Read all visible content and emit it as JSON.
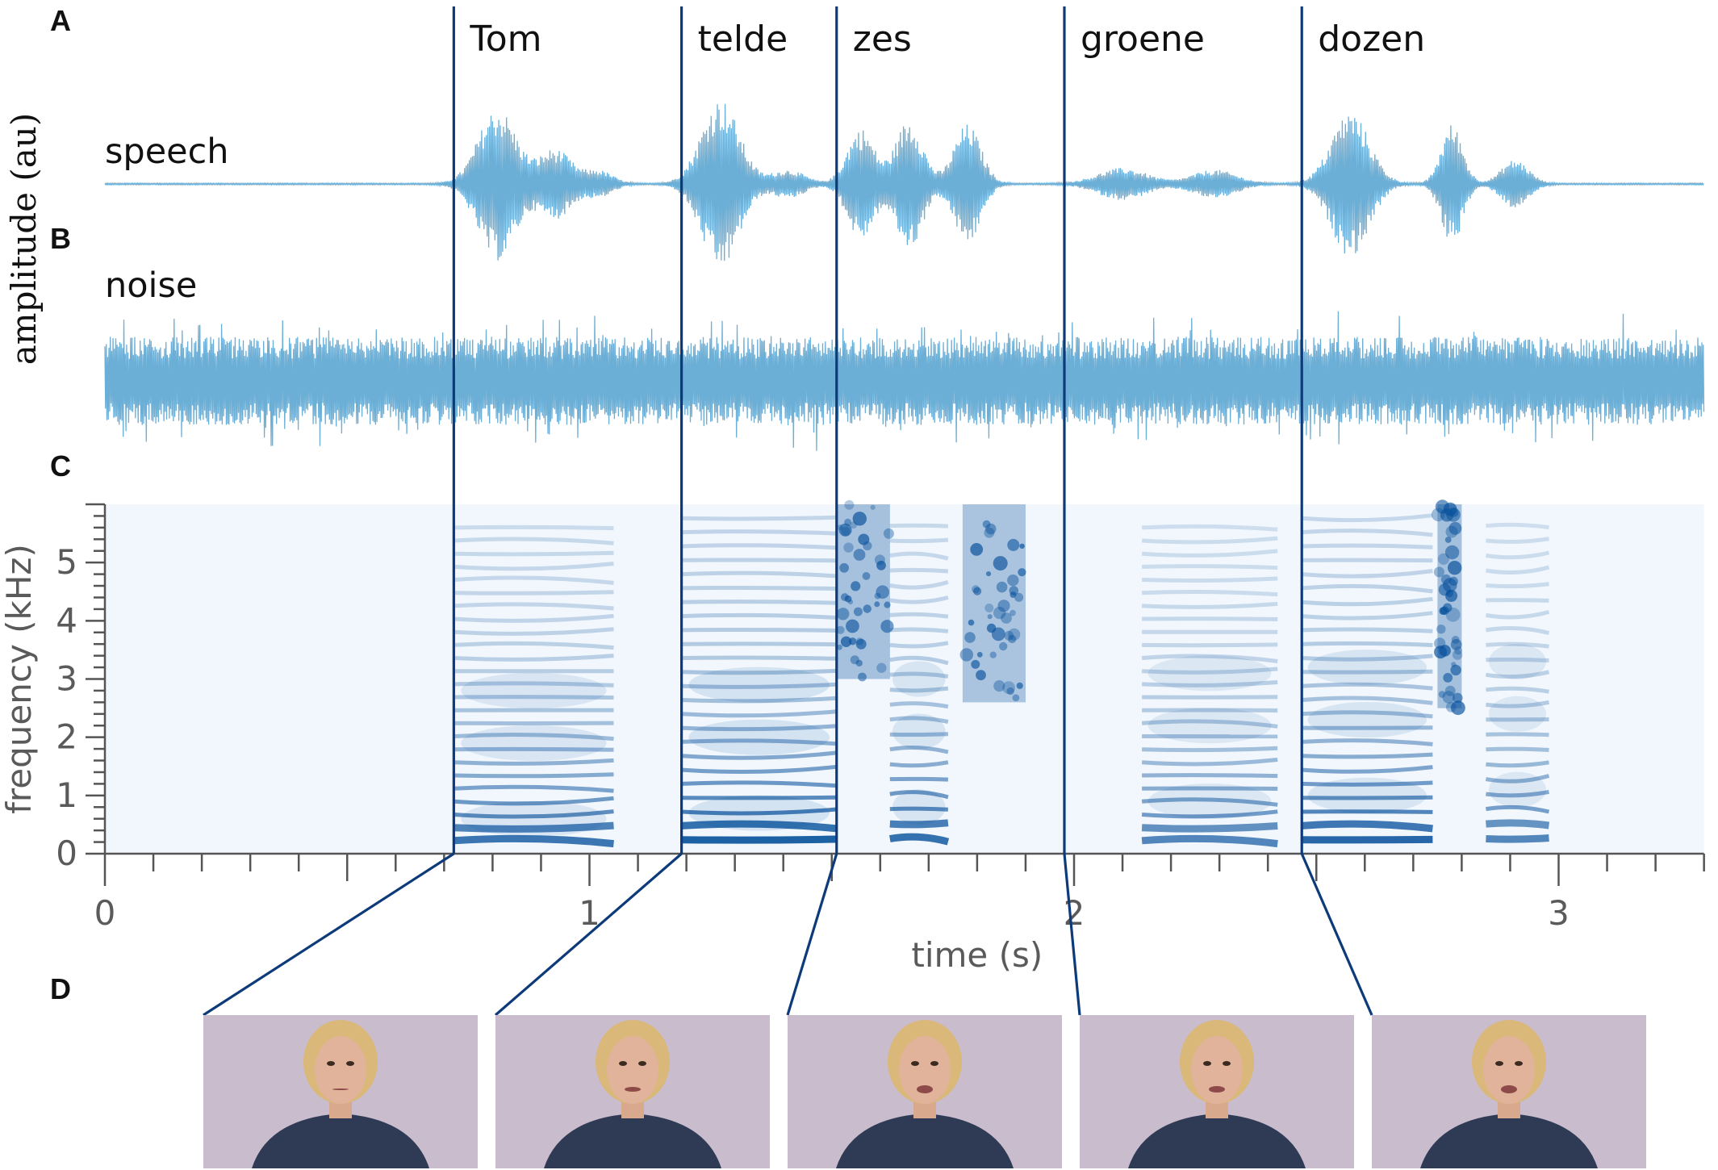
{
  "panels": {
    "a": "A",
    "b": "B",
    "c": "C",
    "d": "D"
  },
  "trace_labels": {
    "speech": "speech",
    "noise": "noise",
    "amplitude": "amplitude (au)"
  },
  "colors": {
    "waveform": "#6baed6",
    "boundary": "#0d3b7a",
    "spectrogram_bg": "#f1f7fd",
    "spectrogram_dark": "#08519c",
    "axis": "#555555",
    "photo_bg": "#c9bccd"
  },
  "chart_data": [
    {
      "type": "line",
      "panel": "A",
      "name": "speech",
      "words": [
        {
          "label": "Tom",
          "onset_s": 0.72
        },
        {
          "label": "telde",
          "onset_s": 1.19
        },
        {
          "label": "zes",
          "onset_s": 1.51
        },
        {
          "label": "groene",
          "onset_s": 1.98
        },
        {
          "label": "dozen",
          "onset_s": 2.47
        }
      ],
      "syllable_envelopes": [
        {
          "t": 0.81,
          "w": 0.07,
          "a": 0.9
        },
        {
          "t": 0.93,
          "w": 0.06,
          "a": 0.4
        },
        {
          "t": 1.02,
          "w": 0.05,
          "a": 0.15
        },
        {
          "t": 1.27,
          "w": 0.07,
          "a": 1.0
        },
        {
          "t": 1.41,
          "w": 0.06,
          "a": 0.16
        },
        {
          "t": 1.56,
          "w": 0.05,
          "a": 0.65
        },
        {
          "t": 1.66,
          "w": 0.05,
          "a": 0.76
        },
        {
          "t": 1.78,
          "w": 0.05,
          "a": 0.7
        },
        {
          "t": 2.1,
          "w": 0.09,
          "a": 0.18
        },
        {
          "t": 2.29,
          "w": 0.08,
          "a": 0.16
        },
        {
          "t": 2.57,
          "w": 0.07,
          "a": 0.85
        },
        {
          "t": 2.78,
          "w": 0.04,
          "a": 0.7
        },
        {
          "t": 2.91,
          "w": 0.05,
          "a": 0.28
        }
      ],
      "xlim": [
        0,
        3.3
      ]
    },
    {
      "type": "line",
      "panel": "B",
      "name": "noise",
      "xlim": [
        0,
        3.3
      ]
    },
    {
      "type": "heatmap",
      "panel": "C",
      "xlabel": "time (s)",
      "ylabel": "frequency (kHz)",
      "xlim": [
        0,
        3.3
      ],
      "ylim": [
        0,
        6
      ],
      "x_ticks": [
        0,
        1,
        2,
        3
      ],
      "y_ticks": [
        0,
        1,
        2,
        3,
        4,
        5
      ],
      "voiced_segments": [
        {
          "t0": 0.72,
          "t1": 1.05,
          "f0": 0.14,
          "dark": 0.85
        },
        {
          "t0": 1.19,
          "t1": 1.51,
          "f0": 0.15,
          "dark": 1.0
        },
        {
          "t0": 1.62,
          "t1": 1.74,
          "f0": 0.16,
          "dark": 0.9
        },
        {
          "t0": 2.14,
          "t1": 2.42,
          "f0": 0.14,
          "dark": 0.75
        },
        {
          "t0": 2.47,
          "t1": 2.74,
          "f0": 0.15,
          "dark": 0.95
        },
        {
          "t0": 2.85,
          "t1": 2.98,
          "f0": 0.16,
          "dark": 0.75
        }
      ],
      "frication_segments": [
        {
          "t0": 1.51,
          "t1": 1.62,
          "f_lo": 3.0,
          "f_hi": 6.0,
          "dark": 0.9
        },
        {
          "t0": 1.77,
          "t1": 1.9,
          "f_lo": 2.6,
          "f_hi": 6.0,
          "dark": 0.85
        },
        {
          "t0": 2.75,
          "t1": 2.8,
          "f_lo": 2.5,
          "f_hi": 6.0,
          "dark": 0.95
        }
      ]
    }
  ],
  "video_frames": {
    "onsets_s": [
      0.72,
      1.19,
      1.51,
      1.98,
      2.47
    ],
    "count": 5
  }
}
